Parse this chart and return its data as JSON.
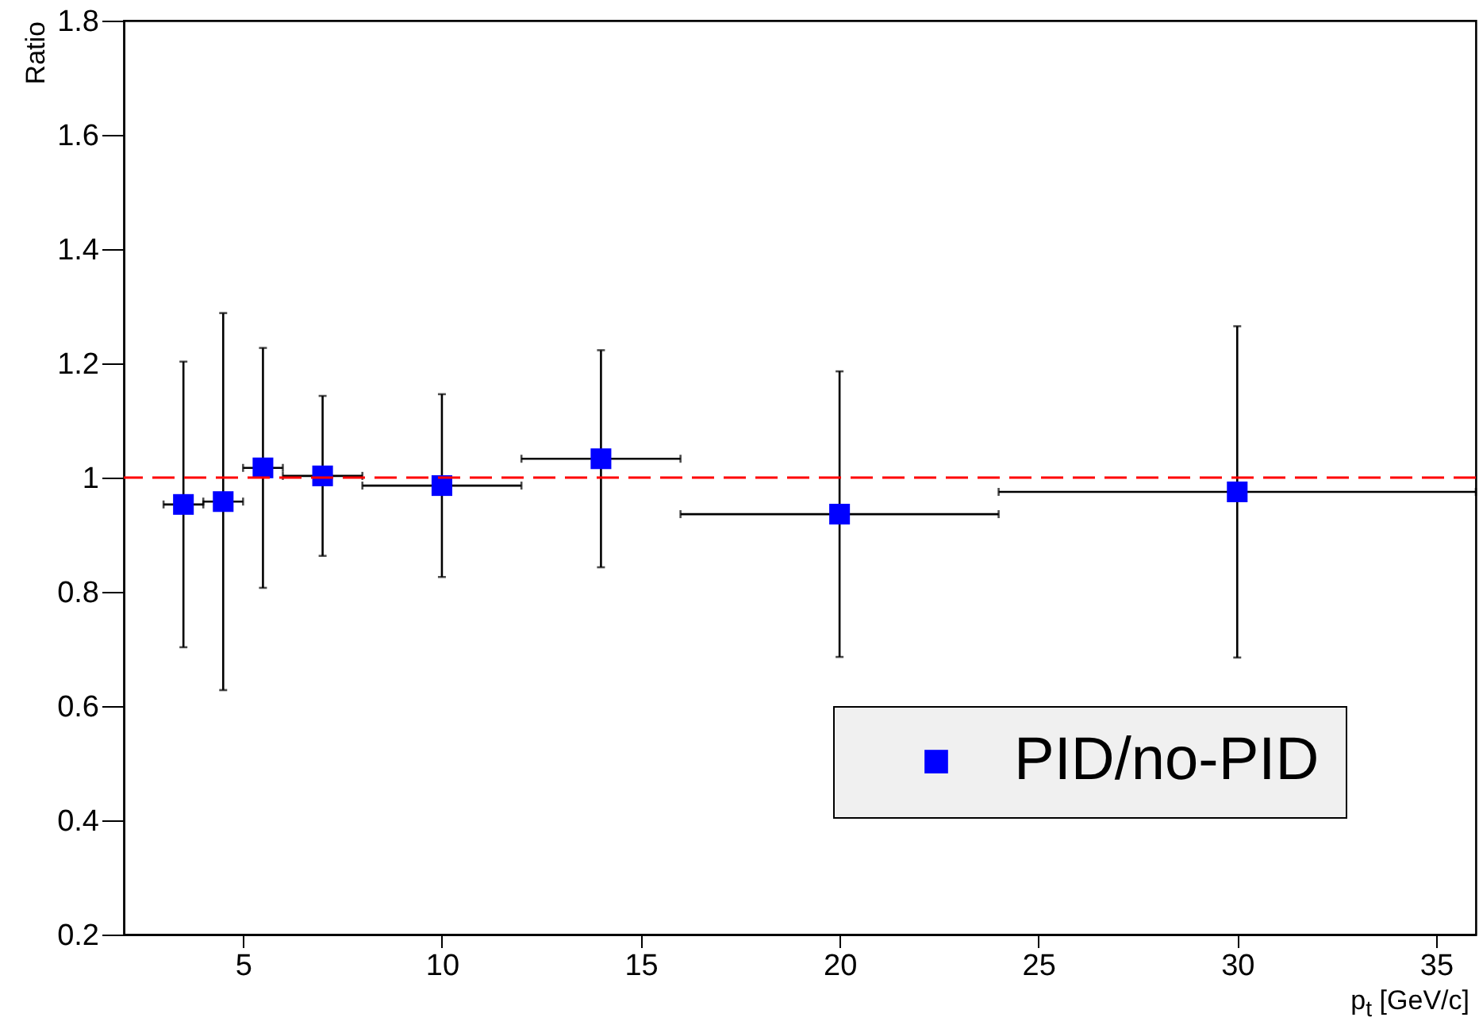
{
  "chart_data": {
    "type": "scatter",
    "xlabel": "p$_{t}$ [GeV/c]",
    "ylabel": "Ratio",
    "x": [
      3.5,
      4.5,
      5.5,
      7,
      10,
      14,
      20,
      30
    ],
    "series": [
      {
        "name": "PID/no-PID",
        "color": "#0000ff",
        "values": [
          0.953,
          0.958,
          1.017,
          1.003,
          0.986,
          1.033,
          0.936,
          0.975
        ],
        "errors": [
          0.25,
          0.33,
          0.21,
          0.14,
          0.16,
          0.19,
          0.25,
          0.29
        ],
        "xerrors": [
          0.5,
          0.5,
          0.5,
          1,
          2,
          2,
          4,
          6
        ]
      }
    ],
    "xlim": [
      2,
      36
    ],
    "xticks": [
      5,
      10,
      15,
      20,
      25,
      30,
      35
    ],
    "ylim": [
      0.2,
      1.8
    ],
    "yticks": [
      0.2,
      0.4,
      0.6,
      0.8,
      1,
      1.2,
      1.4,
      1.6,
      1.8
    ],
    "ref_lines": [
      {
        "axis": "y",
        "value": 1,
        "color": "#ff0000",
        "line_style": "dashed"
      }
    ],
    "marker": "square",
    "legend": "bottom right",
    "grid": false
  }
}
